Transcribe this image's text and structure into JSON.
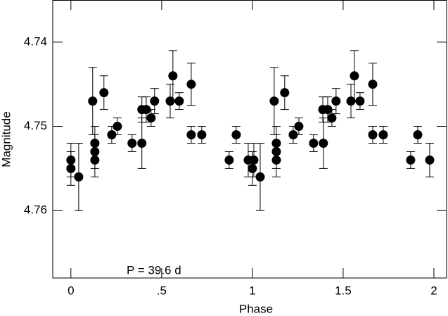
{
  "chart_data": {
    "type": "scatter",
    "xlabel": "Phase",
    "ylabel": "Magnitude",
    "annotation": "P = 39.6 d",
    "x": [
      0,
      0,
      0.043,
      0.12,
      0.132,
      0.132,
      0.132,
      0.182,
      0.225,
      0.256,
      0.337,
      0.391,
      0.391,
      0.415,
      0.442,
      0.461,
      0.547,
      0.562,
      0.597,
      0.663,
      0.663,
      0.721,
      0.872,
      0.911,
      0.977,
      1.0,
      1.008,
      1.043,
      1.12,
      1.132,
      1.132,
      1.132,
      1.178,
      1.225,
      1.256,
      1.337,
      1.388,
      1.391,
      1.415,
      1.438,
      1.461,
      1.543,
      1.562,
      1.593,
      1.663,
      1.663,
      1.721,
      1.872,
      1.911,
      1.977
    ],
    "values": [
      4.754,
      4.755,
      4.756,
      4.747,
      4.752,
      4.753,
      4.754,
      4.746,
      4.751,
      4.75,
      4.752,
      4.748,
      4.752,
      4.748,
      4.749,
      4.747,
      4.747,
      4.744,
      4.747,
      4.745,
      4.751,
      4.751,
      4.754,
      4.751,
      4.754,
      4.755,
      4.754,
      4.756,
      4.747,
      4.752,
      4.753,
      4.754,
      4.746,
      4.751,
      4.75,
      4.752,
      4.748,
      4.752,
      4.748,
      4.749,
      4.747,
      4.747,
      4.744,
      4.747,
      4.745,
      4.751,
      4.751,
      4.754,
      4.751,
      4.754
    ],
    "errors": [
      0.002,
      0.002,
      0.004,
      0.004,
      0.002,
      0.002,
      0.002,
      0.002,
      0.001,
      0.001,
      0.001,
      0.0015,
      0.003,
      0.0015,
      0.001,
      0.0015,
      0.002,
      0.003,
      0.001,
      0.0025,
      0.001,
      0.001,
      0.001,
      0.001,
      0.002,
      0.002,
      0.002,
      0.004,
      0.004,
      0.002,
      0.002,
      0.002,
      0.002,
      0.001,
      0.001,
      0.001,
      0.0015,
      0.003,
      0.0015,
      0.001,
      0.0015,
      0.002,
      0.003,
      0.001,
      0.0025,
      0.001,
      0.001,
      0.001,
      0.001,
      0.002
    ],
    "color": "#000000",
    "xlim": [
      -0.1,
      2.07
    ],
    "xticks": [
      0,
      {
        "value": 0.5,
        "label": ".5"
      },
      1,
      1.5,
      2
    ],
    "ylim": [
      4.735,
      4.768
    ],
    "invert_y": true,
    "yticks": [
      4.74,
      4.75,
      4.76
    ]
  }
}
